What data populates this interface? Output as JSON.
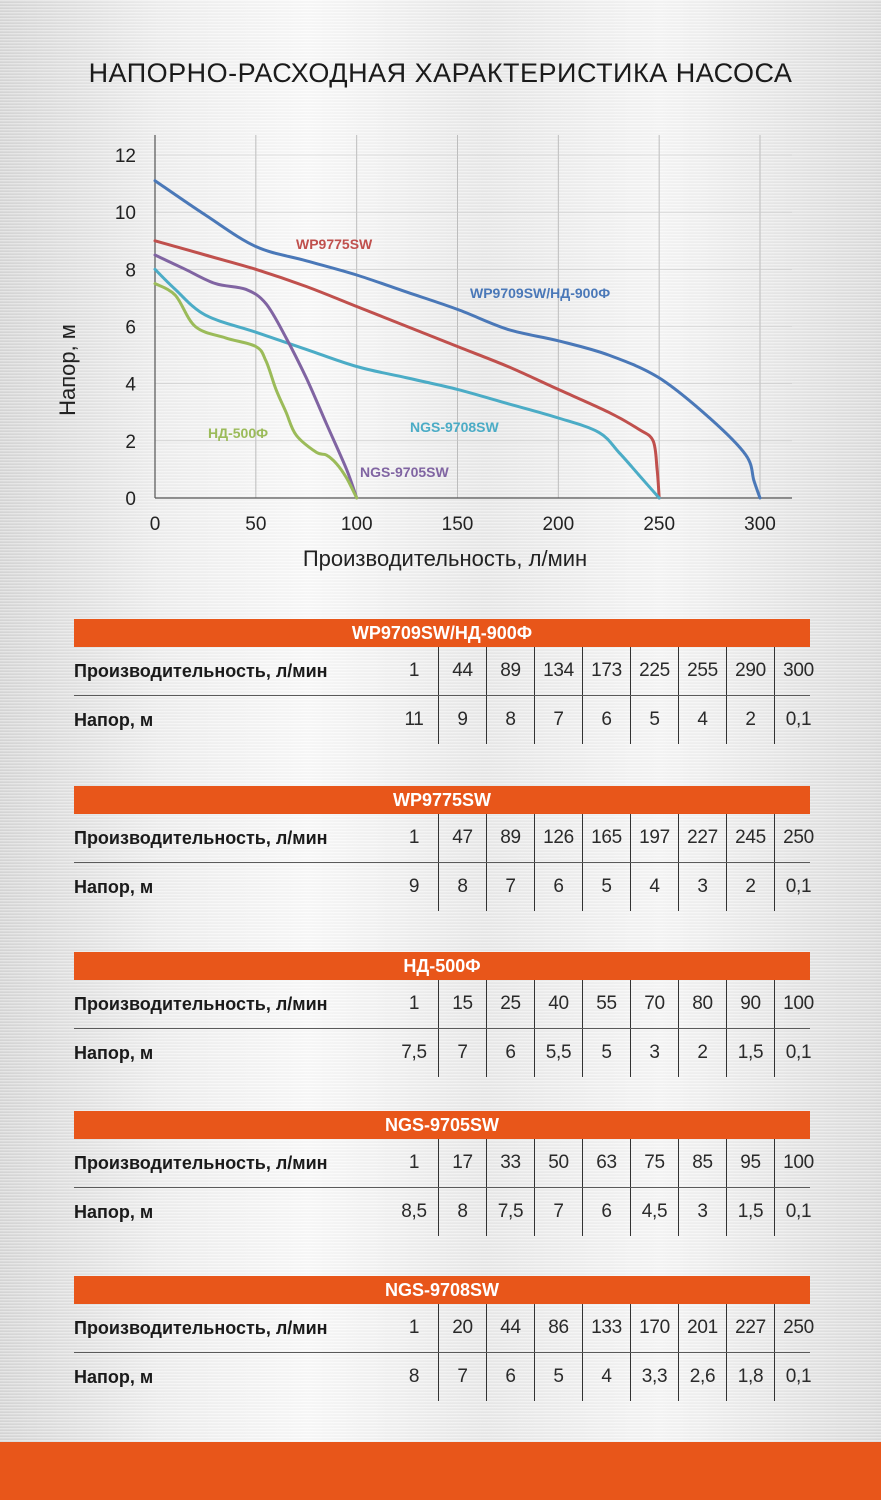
{
  "title": "НАПОРНО-РАСХОДНАЯ ХАРАКТЕРИСТИКА НАСОСА",
  "chart_data": {
    "type": "line",
    "title": "НАПОРНО-РАСХОДНАЯ ХАРАКТЕРИСТИКА НАСОСА",
    "xlabel": "Производительность, л/мин",
    "ylabel": "Напор, м",
    "xlim": [
      0,
      300
    ],
    "ylim": [
      0,
      12
    ],
    "xticks": [
      0,
      50,
      100,
      150,
      200,
      250,
      300
    ],
    "yticks": [
      0,
      2,
      4,
      6,
      8,
      10,
      12
    ],
    "grid": "vertical",
    "series": [
      {
        "name": "WP9709SW/НД-900Ф",
        "color": "#4a78b8",
        "x": [
          0,
          25,
          50,
          75,
          100,
          125,
          150,
          175,
          200,
          225,
          250,
          275,
          293,
          297,
          300
        ],
        "y": [
          11.1,
          9.9,
          8.8,
          8.3,
          7.8,
          7.2,
          6.6,
          5.9,
          5.5,
          5.0,
          4.2,
          2.8,
          1.5,
          0.6,
          0
        ]
      },
      {
        "name": "WP9775SW",
        "color": "#c0504d",
        "x": [
          0,
          25,
          50,
          75,
          100,
          125,
          150,
          175,
          200,
          225,
          240,
          247,
          249,
          250
        ],
        "y": [
          9.0,
          8.5,
          8.0,
          7.4,
          6.7,
          6.0,
          5.3,
          4.6,
          3.8,
          3.0,
          2.4,
          2.0,
          1.0,
          0
        ]
      },
      {
        "name": "NGS-9708SW",
        "color": "#4bacc6",
        "x": [
          0,
          10,
          25,
          50,
          75,
          100,
          125,
          150,
          175,
          200,
          220,
          230,
          240,
          250
        ],
        "y": [
          8.0,
          7.3,
          6.4,
          5.8,
          5.2,
          4.6,
          4.2,
          3.8,
          3.3,
          2.8,
          2.3,
          1.6,
          0.8,
          0
        ]
      },
      {
        "name": "NGS-9705SW",
        "color": "#8064a2",
        "x": [
          0,
          15,
          30,
          45,
          55,
          65,
          75,
          85,
          95,
          100
        ],
        "y": [
          8.5,
          8.0,
          7.5,
          7.3,
          6.8,
          5.6,
          4.2,
          2.6,
          1.0,
          0
        ]
      },
      {
        "name": "НД-500Ф",
        "color": "#9bbb59",
        "x": [
          0,
          10,
          20,
          35,
          50,
          55,
          60,
          65,
          70,
          80,
          85,
          90,
          95,
          100
        ],
        "y": [
          7.5,
          7.1,
          6.0,
          5.6,
          5.3,
          4.8,
          3.8,
          3.0,
          2.2,
          1.6,
          1.5,
          1.2,
          0.7,
          0
        ]
      }
    ]
  },
  "tables": [
    {
      "title": "WP9709SW/НД-900Ф",
      "flow_label": "Производительность, л/мин",
      "flow": [
        "1",
        "44",
        "89",
        "134",
        "173",
        "225",
        "255",
        "290",
        "300"
      ],
      "head_label": "Напор, м",
      "head": [
        "11",
        "9",
        "8",
        "7",
        "6",
        "5",
        "4",
        "2",
        "0,1"
      ]
    },
    {
      "title": "WP9775SW",
      "flow_label": "Производительность, л/мин",
      "flow": [
        "1",
        "47",
        "89",
        "126",
        "165",
        "197",
        "227",
        "245",
        "250"
      ],
      "head_label": "Напор, м",
      "head": [
        "9",
        "8",
        "7",
        "6",
        "5",
        "4",
        "3",
        "2",
        "0,1"
      ]
    },
    {
      "title": "НД-500Ф",
      "flow_label": "Производительность, л/мин",
      "flow": [
        "1",
        "15",
        "25",
        "40",
        "55",
        "70",
        "80",
        "90",
        "100"
      ],
      "head_label": "Напор, м",
      "head": [
        "7,5",
        "7",
        "6",
        "5,5",
        "5",
        "3",
        "2",
        "1,5",
        "0,1"
      ]
    },
    {
      "title": "NGS-9705SW",
      "flow_label": "Производительность, л/мин",
      "flow": [
        "1",
        "17",
        "33",
        "50",
        "63",
        "75",
        "85",
        "95",
        "100"
      ],
      "head_label": "Напор, м",
      "head": [
        "8,5",
        "8",
        "7,5",
        "7",
        "6",
        "4,5",
        "3",
        "1,5",
        "0,1"
      ]
    },
    {
      "title": "NGS-9708SW",
      "flow_label": "Производительность, л/мин",
      "flow": [
        "1",
        "20",
        "44",
        "86",
        "133",
        "170",
        "201",
        "227",
        "250"
      ],
      "head_label": "Напор, м",
      "head": [
        "8",
        "7",
        "6",
        "5",
        "4",
        "3,3",
        "2,6",
        "1,8",
        "0,1"
      ]
    }
  ]
}
